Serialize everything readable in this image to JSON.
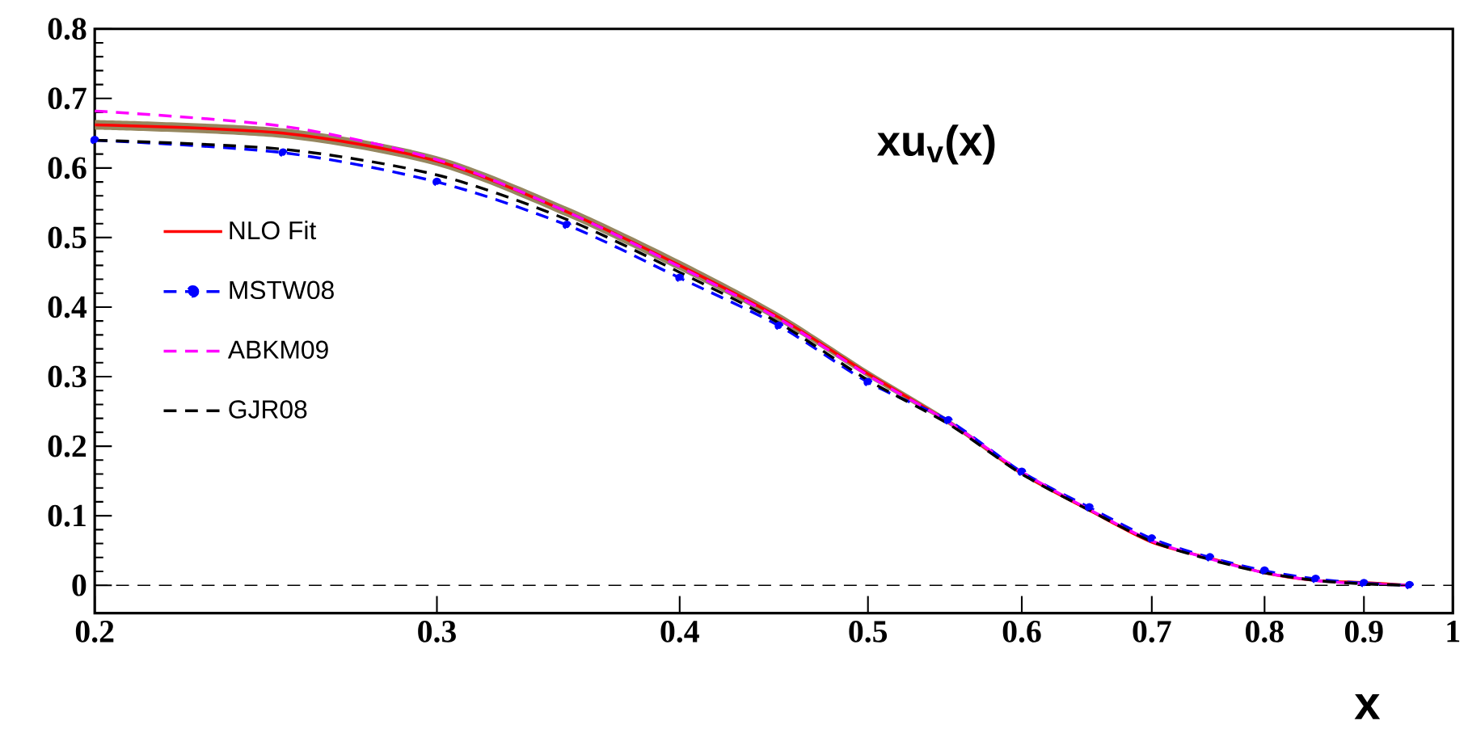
{
  "chart_data": {
    "type": "line",
    "title": "xu$_{v}$(x)",
    "xlabel": "x",
    "log": "x",
    "xlim": [
      0.2,
      1
    ],
    "ylim": [
      -0.04,
      0.8
    ],
    "xticks": [
      0.2,
      0.3,
      0.4,
      0.5,
      0.6,
      0.7,
      0.8,
      0.9,
      1
    ],
    "yticks": [
      0,
      0.1,
      0.2,
      0.3,
      0.4,
      0.5,
      0.6,
      0.7,
      0.8
    ],
    "legend": "left",
    "ref_lines": [
      {
        "axis": "y",
        "value": 0,
        "color": "#000000",
        "line_style": "dashed"
      }
    ],
    "x": [
      0.2,
      0.25,
      0.3,
      0.35,
      0.4,
      0.45,
      0.5,
      0.55,
      0.6,
      0.65,
      0.7,
      0.75,
      0.8,
      0.85,
      0.9,
      0.95
    ],
    "series": [
      {
        "name": "NLO Fit",
        "color": "#ff0000",
        "line_style": "solid",
        "marker": "none",
        "values": [
          0.662,
          0.65,
          0.61,
          0.537,
          0.46,
          0.385,
          0.304,
          0.235,
          0.161,
          0.108,
          0.062,
          0.039,
          0.018,
          0.007,
          0.004,
          0.0
        ],
        "lower": [
          0.655,
          0.643,
          0.603,
          0.53,
          0.453,
          0.379,
          0.299,
          0.231,
          0.158,
          0.106,
          0.061,
          0.038,
          0.017,
          0.006,
          0.003,
          0.0
        ],
        "upper": [
          0.669,
          0.657,
          0.617,
          0.544,
          0.467,
          0.391,
          0.309,
          0.239,
          0.164,
          0.11,
          0.063,
          0.04,
          0.019,
          0.008,
          0.005,
          0.001
        ]
      },
      {
        "name": "MSTW08",
        "color": "#0000ff",
        "line_style": "dashed",
        "marker": "circle",
        "values": [
          0.64,
          0.622,
          0.58,
          0.518,
          0.442,
          0.373,
          0.292,
          0.237,
          0.163,
          0.112,
          0.067,
          0.04,
          0.021,
          0.009,
          0.003,
          0.0
        ]
      },
      {
        "name": "ABKM09",
        "color": "#ff00ff",
        "line_style": "dashed",
        "marker": "none",
        "values": [
          0.682,
          0.66,
          0.612,
          0.537,
          0.458,
          0.383,
          0.302,
          0.235,
          0.163,
          0.109,
          0.064,
          0.038,
          0.018,
          0.007,
          0.002,
          0.0
        ]
      },
      {
        "name": "GJR08",
        "color": "#000000",
        "line_style": "dashed",
        "marker": "none",
        "values": [
          0.64,
          0.627,
          0.59,
          0.526,
          0.45,
          0.377,
          0.295,
          0.232,
          0.16,
          0.108,
          0.063,
          0.037,
          0.018,
          0.007,
          0.002,
          0.0
        ]
      }
    ]
  }
}
